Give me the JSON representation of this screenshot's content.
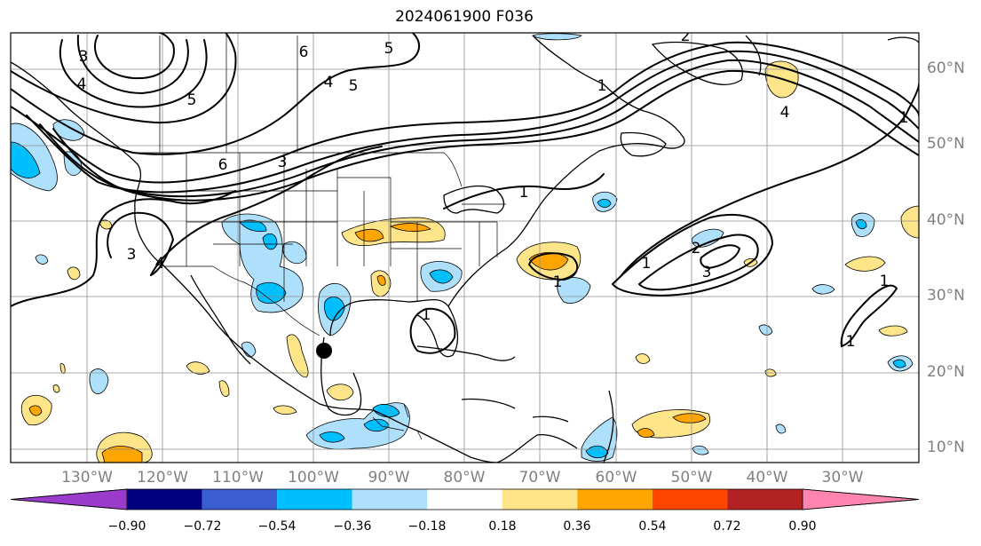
{
  "title": "2024061900 F036",
  "latitude_labels": [
    "60°N",
    "50°N",
    "40°N",
    "30°N",
    "20°N",
    "10°N"
  ],
  "longitude_labels": [
    "130°W",
    "120°W",
    "110°W",
    "100°W",
    "90°W",
    "80°W",
    "70°W",
    "60°W",
    "50°W",
    "40°W",
    "30°W"
  ],
  "contour_labels": [
    "1",
    "2",
    "3",
    "4",
    "5",
    "6"
  ],
  "colorbar": {
    "ticks": [
      "−0.90",
      "−0.72",
      "−0.54",
      "−0.36",
      "−0.18",
      "0.18",
      "0.36",
      "0.54",
      "0.72",
      "0.90"
    ],
    "colors": [
      "#9a3bcc",
      "#000080",
      "#3a5dcf",
      "#00bfff",
      "#aee0fb",
      "#ffffff",
      "#ffe58a",
      "#ffa500",
      "#ff4500",
      "#b22222",
      "#ff85b0"
    ]
  },
  "marker": {
    "label": "storm-position",
    "lon": -98.5,
    "lat": 23.2
  }
}
